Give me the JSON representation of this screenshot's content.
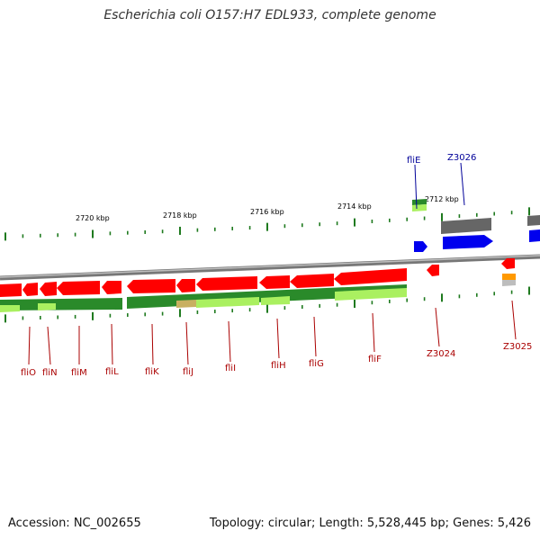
{
  "title": "Escherichia coli O157:H7 EDL933, complete genome",
  "footer": {
    "accession": "Accession: NC_002655",
    "summary": "Topology: circular; Length: 5,528,445 bp; Genes: 5,426"
  },
  "colors": {
    "backbone": "#8a8a8a",
    "forward_cds": "#0000ee",
    "reverse_cds": "#ff0000",
    "forward_label": "#000099",
    "reverse_label": "#aa0000",
    "tick": "#1f7a1f",
    "conservation_dark": "#2a8a2a",
    "conservation_light": "#aaf060",
    "gray_feature": "#666666",
    "orange_feature": "#ff9900"
  },
  "ruler": {
    "unit": "kbp",
    "labels": [
      "2720 kbp",
      "2718 kbp",
      "2716 kbp",
      "2714 kbp",
      "2712 kbp"
    ]
  },
  "genes_reverse": [
    {
      "name": "fliO"
    },
    {
      "name": "fliN"
    },
    {
      "name": "fliM"
    },
    {
      "name": "fliL"
    },
    {
      "name": "fliK"
    },
    {
      "name": "fliJ"
    },
    {
      "name": "fliI"
    },
    {
      "name": "fliH"
    },
    {
      "name": "fliG"
    },
    {
      "name": "fliF"
    },
    {
      "name": "Z3024"
    },
    {
      "name": "Z3025"
    }
  ],
  "genes_forward": [
    {
      "name": "fliE"
    },
    {
      "name": "Z3026"
    }
  ]
}
